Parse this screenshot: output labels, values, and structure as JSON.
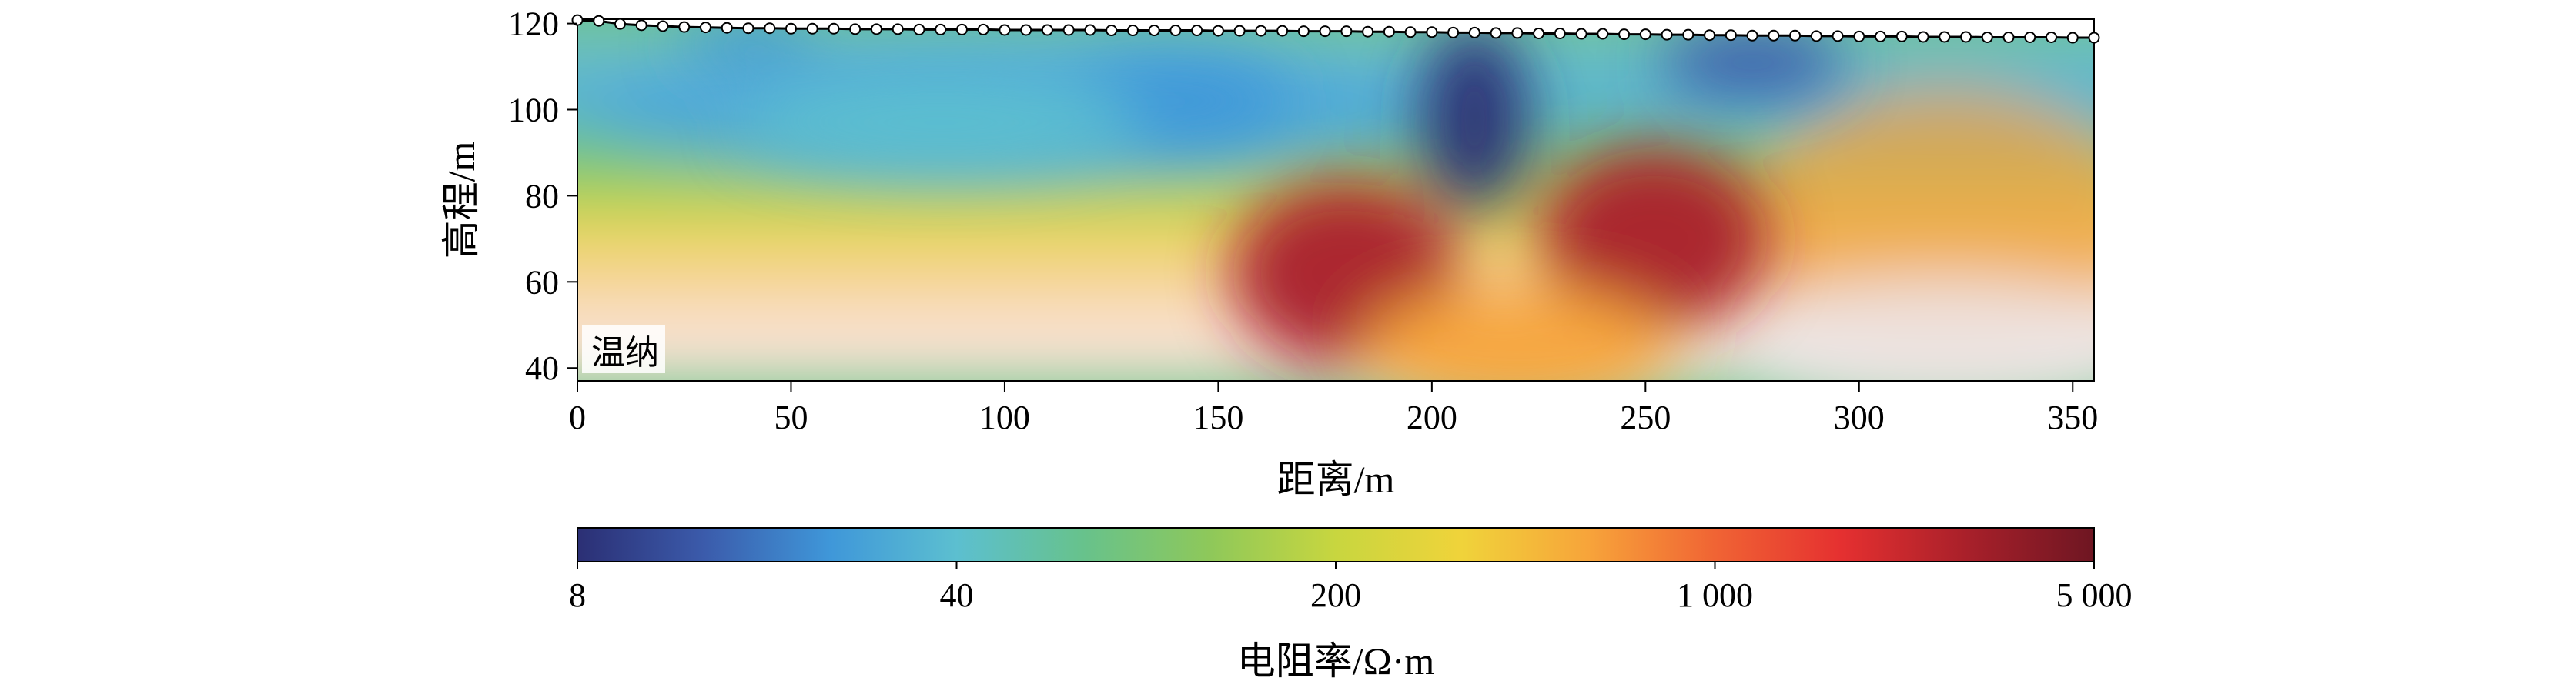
{
  "chart_data": {
    "type": "heatmap",
    "xlabel": "距离/m",
    "ylabel": "高程/m",
    "xlim": [
      0,
      355
    ],
    "ylim": [
      37,
      121
    ],
    "x_ticks": [
      0,
      50,
      100,
      150,
      200,
      250,
      300,
      350
    ],
    "y_ticks": [
      40,
      60,
      80,
      100,
      120
    ],
    "annotation": "温纳",
    "surface_profile": {
      "x": [
        0,
        5,
        10,
        15,
        20,
        25,
        30,
        35,
        40,
        45,
        50,
        55,
        60,
        65,
        70,
        75,
        80,
        85,
        90,
        95,
        100,
        105,
        110,
        115,
        120,
        125,
        130,
        135,
        140,
        145,
        150,
        155,
        160,
        165,
        170,
        175,
        180,
        185,
        190,
        195,
        200,
        205,
        210,
        215,
        220,
        225,
        230,
        235,
        240,
        245,
        250,
        255,
        260,
        265,
        270,
        275,
        280,
        285,
        290,
        295,
        300,
        305,
        310,
        315,
        320,
        325,
        330,
        335,
        340,
        345,
        350,
        355
      ],
      "elevation": [
        120.8,
        120.6,
        119.9,
        119.6,
        119.4,
        119.2,
        119.1,
        119.0,
        118.9,
        118.9,
        118.8,
        118.8,
        118.8,
        118.7,
        118.7,
        118.7,
        118.6,
        118.6,
        118.6,
        118.6,
        118.5,
        118.5,
        118.5,
        118.5,
        118.5,
        118.4,
        118.4,
        118.4,
        118.4,
        118.4,
        118.3,
        118.3,
        118.3,
        118.3,
        118.2,
        118.2,
        118.2,
        118.1,
        118.1,
        118.0,
        118.0,
        117.9,
        117.9,
        117.8,
        117.8,
        117.7,
        117.7,
        117.6,
        117.6,
        117.5,
        117.5,
        117.4,
        117.4,
        117.3,
        117.3,
        117.2,
        117.2,
        117.2,
        117.1,
        117.1,
        117.0,
        117.0,
        117.0,
        116.9,
        116.9,
        116.9,
        116.8,
        116.8,
        116.8,
        116.8,
        116.7,
        116.7
      ]
    },
    "resistivity_anomalies": [
      {
        "x": 210,
        "y": 98,
        "value": 8
      },
      {
        "x": 275,
        "y": 111,
        "value": 12
      },
      {
        "x": 40,
        "y": 115,
        "value": 20
      },
      {
        "x": 140,
        "y": 102,
        "value": 18
      },
      {
        "x": 85,
        "y": 97,
        "value": 35
      },
      {
        "x": 180,
        "y": 62,
        "value": 3000
      },
      {
        "x": 252,
        "y": 70,
        "value": 3000
      },
      {
        "x": 220,
        "y": 45,
        "value": 600
      }
    ],
    "colorbar": {
      "label": "电阻率/Ω·m",
      "scale": "log",
      "range": [
        8,
        5000
      ],
      "ticks": [
        8,
        40,
        200,
        1000,
        5000
      ],
      "tick_labels": [
        "8",
        "40",
        "200",
        "1 000",
        "5 000"
      ],
      "colors": [
        "#2b2f74",
        "#3b5bab",
        "#3f97d9",
        "#5cbfd0",
        "#67c28c",
        "#8ec85a",
        "#c8d63f",
        "#f0d33a",
        "#f7a43a",
        "#f06434",
        "#e53030",
        "#a8202a",
        "#6e1622"
      ]
    }
  }
}
